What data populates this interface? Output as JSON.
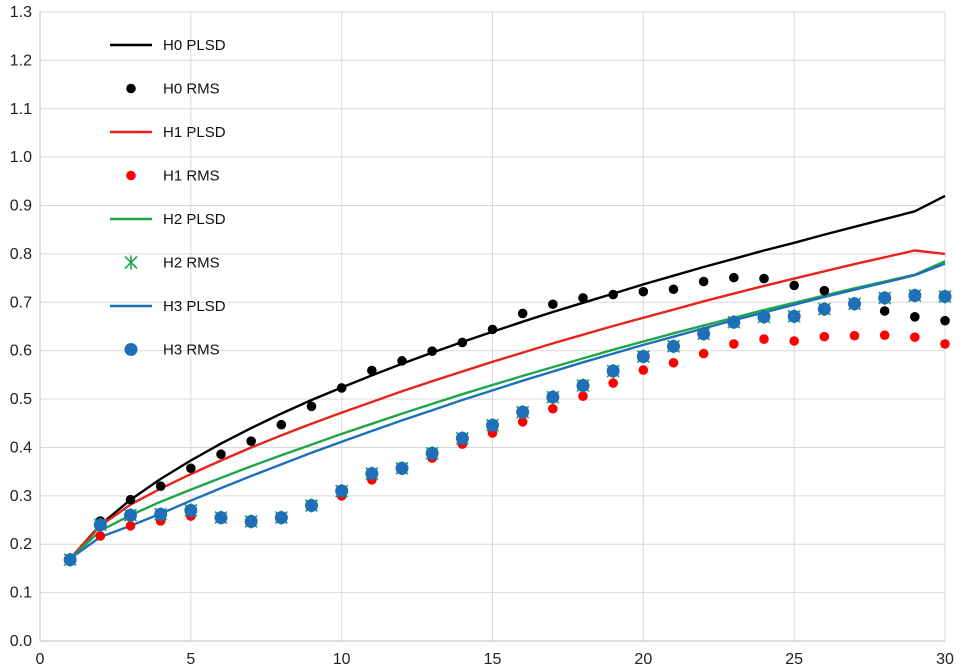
{
  "chart_data": {
    "type": "line",
    "title": "",
    "xlabel": "",
    "ylabel": "",
    "xlim": [
      0,
      30
    ],
    "ylim": [
      0.0,
      1.3
    ],
    "x_ticks": [
      0,
      5,
      10,
      15,
      20,
      25,
      30
    ],
    "y_ticks": [
      0.0,
      0.1,
      0.2,
      0.3,
      0.4,
      0.5,
      0.6,
      0.7,
      0.8,
      0.9,
      1.0,
      1.1,
      1.2,
      1.3
    ],
    "x_tick_labels": [
      "0",
      "5",
      "10",
      "15",
      "20",
      "25",
      "30"
    ],
    "y_tick_labels": [
      "0.0",
      "0.1",
      "0.2",
      "0.3",
      "0.4",
      "0.5",
      "0.6",
      "0.7",
      "0.8",
      "0.9",
      "1.0",
      "1.1",
      "1.2",
      "1.3"
    ],
    "grid": true,
    "legend_position": "top-left",
    "x": [
      1,
      2,
      3,
      4,
      5,
      6,
      7,
      8,
      9,
      10,
      11,
      12,
      13,
      14,
      15,
      16,
      17,
      18,
      19,
      20,
      21,
      22,
      23,
      24,
      25,
      26,
      27,
      28,
      29,
      30
    ],
    "series": [
      {
        "name": "H0 PLSD",
        "kind": "line",
        "color": "#000000",
        "values": [
          0.17,
          0.24,
          0.292,
          0.335,
          0.373,
          0.408,
          0.44,
          0.47,
          0.498,
          0.524,
          0.549,
          0.573,
          0.596,
          0.618,
          0.639,
          0.66,
          0.68,
          0.699,
          0.718,
          0.737,
          0.755,
          0.773,
          0.79,
          0.807,
          0.823,
          0.84,
          0.856,
          0.872,
          0.888,
          0.92
        ]
      },
      {
        "name": "H0 RMS",
        "kind": "marker",
        "marker": "circle",
        "color": "#000000",
        "values": [
          0.165,
          0.248,
          0.292,
          0.32,
          0.357,
          0.386,
          0.413,
          0.447,
          0.485,
          0.523,
          0.559,
          0.579,
          0.599,
          0.617,
          0.644,
          0.677,
          0.696,
          0.709,
          0.716,
          0.722,
          0.727,
          0.743,
          0.751,
          0.749,
          0.735,
          0.724,
          0.7,
          0.682,
          0.67,
          0.662
        ]
      },
      {
        "name": "H1 PLSD",
        "kind": "line",
        "color": "#e8231c",
        "values": [
          0.17,
          0.238,
          0.282,
          0.315,
          0.345,
          0.373,
          0.4,
          0.425,
          0.449,
          0.472,
          0.494,
          0.516,
          0.537,
          0.557,
          0.577,
          0.596,
          0.615,
          0.633,
          0.651,
          0.668,
          0.685,
          0.702,
          0.718,
          0.734,
          0.749,
          0.764,
          0.779,
          0.793,
          0.807,
          0.8
        ]
      },
      {
        "name": "H1 RMS",
        "kind": "marker",
        "marker": "circle",
        "color": "#ff0000",
        "values": [
          0.165,
          0.217,
          0.238,
          0.248,
          0.258,
          0.255,
          0.246,
          0.258,
          0.282,
          0.3,
          0.333,
          0.353,
          0.378,
          0.407,
          0.43,
          0.453,
          0.48,
          0.506,
          0.533,
          0.56,
          0.575,
          0.594,
          0.614,
          0.624,
          0.62,
          0.629,
          0.631,
          0.632,
          0.628,
          0.614
        ]
      },
      {
        "name": "H2 PLSD",
        "kind": "line",
        "color": "#1fa54a",
        "values": [
          0.17,
          0.228,
          0.26,
          0.288,
          0.313,
          0.337,
          0.361,
          0.384,
          0.406,
          0.428,
          0.449,
          0.47,
          0.49,
          0.51,
          0.529,
          0.548,
          0.566,
          0.584,
          0.602,
          0.619,
          0.636,
          0.652,
          0.668,
          0.684,
          0.699,
          0.714,
          0.729,
          0.743,
          0.757,
          0.785
        ]
      },
      {
        "name": "H2 RMS",
        "kind": "marker",
        "marker": "star",
        "color": "#1fa54a",
        "values": [
          0.168,
          0.24,
          0.26,
          0.262,
          0.27,
          0.255,
          0.247,
          0.255,
          0.28,
          0.31,
          0.346,
          0.357,
          0.388,
          0.419,
          0.446,
          0.473,
          0.504,
          0.528,
          0.558,
          0.588,
          0.609,
          0.635,
          0.659,
          0.67,
          0.671,
          0.686,
          0.697,
          0.709,
          0.714,
          0.712
        ]
      },
      {
        "name": "H3 PLSD",
        "kind": "line",
        "color": "#1e6fb8",
        "values": [
          0.17,
          0.215,
          0.238,
          0.263,
          0.29,
          0.316,
          0.341,
          0.365,
          0.389,
          0.412,
          0.434,
          0.456,
          0.477,
          0.498,
          0.518,
          0.538,
          0.557,
          0.576,
          0.594,
          0.612,
          0.629,
          0.646,
          0.663,
          0.679,
          0.695,
          0.711,
          0.726,
          0.741,
          0.756,
          0.78
        ]
      },
      {
        "name": "H3 RMS",
        "kind": "marker",
        "marker": "circle-large",
        "color": "#1e6fb8",
        "values": [
          0.168,
          0.24,
          0.26,
          0.262,
          0.27,
          0.255,
          0.247,
          0.255,
          0.28,
          0.31,
          0.346,
          0.357,
          0.388,
          0.419,
          0.446,
          0.473,
          0.504,
          0.528,
          0.558,
          0.588,
          0.609,
          0.635,
          0.659,
          0.67,
          0.671,
          0.686,
          0.697,
          0.709,
          0.714,
          0.712
        ]
      }
    ]
  }
}
